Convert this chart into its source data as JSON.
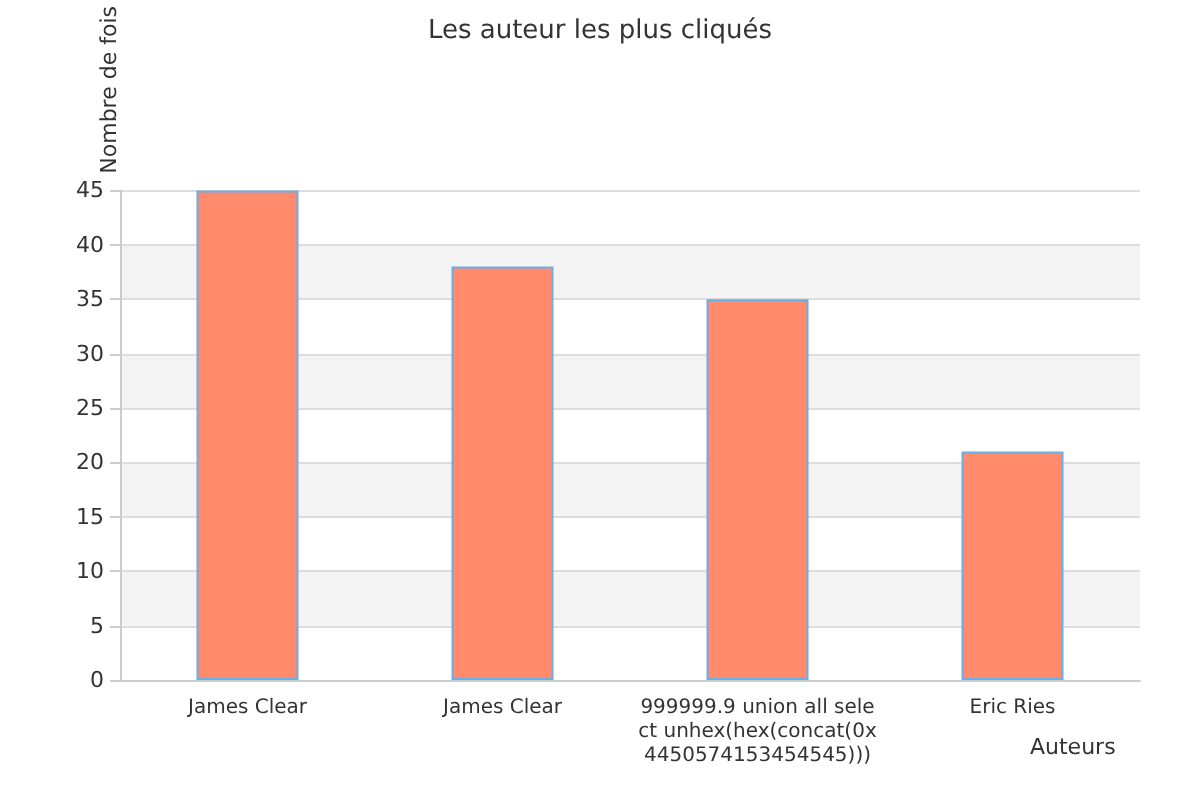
{
  "chart_data": {
    "type": "bar",
    "title": "Les auteur les plus cliqués",
    "xlabel": "Auteurs",
    "ylabel": "Nombre de fois",
    "categories": [
      "James Clear",
      "James Clear",
      "999999.9 union all select unhex(hex(concat(0x4450574153454545)))",
      "Eric Ries"
    ],
    "values": [
      45,
      38,
      35,
      21
    ],
    "color": "#ff8a6c",
    "ylim": [
      0,
      45
    ],
    "yticks": [
      0,
      5,
      10,
      15,
      20,
      25,
      30,
      35,
      40,
      45
    ],
    "grid": "y"
  }
}
